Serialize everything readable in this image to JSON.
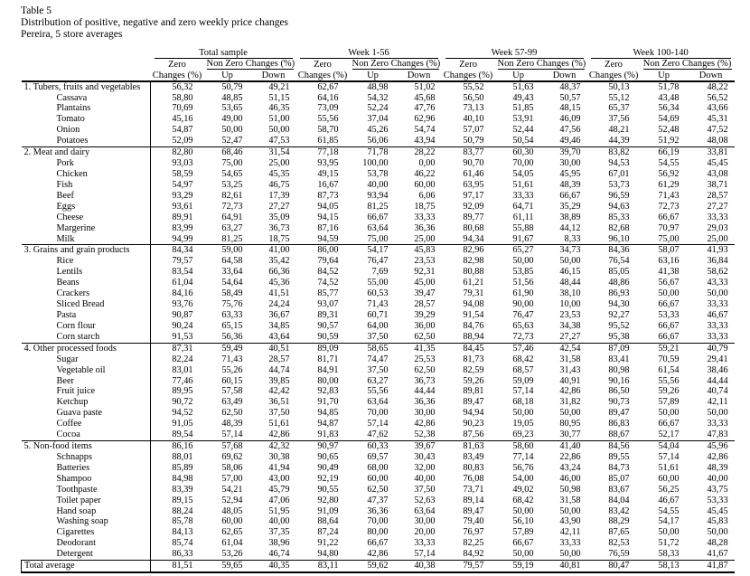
{
  "page": {
    "table_label": "Table 5",
    "title": "Distribution of positive, negative and zero weekly price changes",
    "subtitle": "Pereira, 5 store averages"
  },
  "table": {
    "column_groups": [
      "Total sample",
      "Week 1-56",
      "Week 57-99",
      "Week 100-140"
    ],
    "sub_headers": {
      "zero_top": "Zero",
      "zero_bottom": "Changes (%)",
      "non_zero": "Non Zero Changes (%)",
      "up": "Up",
      "down": "Down"
    },
    "rows": [
      {
        "label": "1. Tubers, fruits and vegetables",
        "type": "section",
        "values": [
          "56,32",
          "50,79",
          "49,21",
          "62,67",
          "48,98",
          "51,02",
          "55,52",
          "51,63",
          "48,37",
          "50,13",
          "51,78",
          "48,22"
        ]
      },
      {
        "label": "Cassava",
        "type": "item",
        "values": [
          "58,80",
          "48,85",
          "51,15",
          "64,16",
          "54,32",
          "45,68",
          "56,50",
          "49,43",
          "50,57",
          "55,12",
          "43,48",
          "56,52"
        ]
      },
      {
        "label": "Plantains",
        "type": "item",
        "values": [
          "70,69",
          "53,65",
          "46,35",
          "73,09",
          "52,24",
          "47,76",
          "73,13",
          "51,85",
          "48,15",
          "65,37",
          "56,34",
          "43,66"
        ]
      },
      {
        "label": "Tomato",
        "type": "item",
        "values": [
          "45,16",
          "49,00",
          "51,00",
          "55,56",
          "37,04",
          "62,96",
          "40,10",
          "53,91",
          "46,09",
          "37,56",
          "54,69",
          "45,31"
        ]
      },
      {
        "label": "Onion",
        "type": "item",
        "values": [
          "54,87",
          "50,00",
          "50,00",
          "58,70",
          "45,26",
          "54,74",
          "57,07",
          "52,44",
          "47,56",
          "48,21",
          "52,48",
          "47,52"
        ]
      },
      {
        "label": "Potatoes",
        "type": "item",
        "values": [
          "52,09",
          "52,47",
          "47,53",
          "61,85",
          "56,06",
          "43,94",
          "50,79",
          "50,54",
          "49,46",
          "44,39",
          "51,92",
          "48,08"
        ]
      },
      {
        "label": "2. Meat and dairy",
        "type": "section",
        "values": [
          "82,80",
          "68,46",
          "31,54",
          "77,18",
          "71,78",
          "28,22",
          "83,77",
          "60,30",
          "39,70",
          "83,82",
          "66,19",
          "33,81"
        ]
      },
      {
        "label": "Pork",
        "type": "item",
        "values": [
          "93,03",
          "75,00",
          "25,00",
          "93,95",
          "100,00",
          "0,00",
          "90,70",
          "70,00",
          "30,00",
          "94,53",
          "54,55",
          "45,45"
        ]
      },
      {
        "label": "Chicken",
        "type": "item",
        "values": [
          "58,59",
          "54,65",
          "45,35",
          "49,15",
          "53,78",
          "46,22",
          "61,46",
          "54,05",
          "45,95",
          "67,01",
          "56,92",
          "43,08"
        ]
      },
      {
        "label": "Fish",
        "type": "item",
        "values": [
          "54,97",
          "53,25",
          "46,75",
          "16,67",
          "40,00",
          "60,00",
          "63,95",
          "51,61",
          "48,39",
          "53,73",
          "61,29",
          "38,71"
        ]
      },
      {
        "label": "Beef",
        "type": "item",
        "values": [
          "93,29",
          "82,61",
          "17,39",
          "87,73",
          "93,94",
          "6,06",
          "97,17",
          "33,33",
          "66,67",
          "96,59",
          "71,43",
          "28,57"
        ]
      },
      {
        "label": "Eggs",
        "type": "item",
        "values": [
          "93,61",
          "72,73",
          "27,27",
          "94,05",
          "81,25",
          "18,75",
          "92,09",
          "64,71",
          "35,29",
          "94,63",
          "72,73",
          "27,27"
        ]
      },
      {
        "label": "Cheese",
        "type": "item",
        "values": [
          "89,91",
          "64,91",
          "35,09",
          "94,15",
          "66,67",
          "33,33",
          "89,77",
          "61,11",
          "38,89",
          "85,33",
          "66,67",
          "33,33"
        ]
      },
      {
        "label": "Margerine",
        "type": "item",
        "values": [
          "83,99",
          "63,27",
          "36,73",
          "87,16",
          "63,64",
          "36,36",
          "80,68",
          "55,88",
          "44,12",
          "82,68",
          "70,97",
          "29,03"
        ]
      },
      {
        "label": "Milk",
        "type": "item",
        "values": [
          "94,99",
          "81,25",
          "18,75",
          "94,59",
          "75,00",
          "25,00",
          "94,34",
          "91,67",
          "8,33",
          "96,10",
          "75,00",
          "25,00"
        ]
      },
      {
        "label": "3. Grains and grain products",
        "type": "section",
        "values": [
          "84,34",
          "59,00",
          "41,00",
          "86,00",
          "54,17",
          "45,83",
          "82,96",
          "65,27",
          "34,73",
          "84,36",
          "58,07",
          "41,93"
        ]
      },
      {
        "label": "Rice",
        "type": "item",
        "values": [
          "79,57",
          "64,58",
          "35,42",
          "79,64",
          "76,47",
          "23,53",
          "82,98",
          "50,00",
          "50,00",
          "76,54",
          "63,16",
          "36,84"
        ]
      },
      {
        "label": "Lentils",
        "type": "item",
        "values": [
          "83,54",
          "33,64",
          "66,36",
          "84,52",
          "7,69",
          "92,31",
          "80,88",
          "53,85",
          "46,15",
          "85,05",
          "41,38",
          "58,62"
        ]
      },
      {
        "label": "Beans",
        "type": "item",
        "values": [
          "61,04",
          "54,64",
          "45,36",
          "74,52",
          "55,00",
          "45,00",
          "61,21",
          "51,56",
          "48,44",
          "48,86",
          "56,67",
          "43,33"
        ]
      },
      {
        "label": "Crackers",
        "type": "item",
        "values": [
          "84,16",
          "58,49",
          "41,51",
          "85,77",
          "60,53",
          "39,47",
          "79,31",
          "61,90",
          "38,10",
          "86,93",
          "50,00",
          "50,00"
        ]
      },
      {
        "label": "Sliced Bread",
        "type": "item",
        "values": [
          "93,76",
          "75,76",
          "24,24",
          "93,07",
          "71,43",
          "28,57",
          "94,08",
          "90,00",
          "10,00",
          "94,30",
          "66,67",
          "33,33"
        ]
      },
      {
        "label": "Pasta",
        "type": "item",
        "values": [
          "90,87",
          "63,33",
          "36,67",
          "89,31",
          "60,71",
          "39,29",
          "91,54",
          "76,47",
          "23,53",
          "92,27",
          "53,33",
          "46,67"
        ]
      },
      {
        "label": "Corn flour",
        "type": "item",
        "values": [
          "90,24",
          "65,15",
          "34,85",
          "90,57",
          "64,00",
          "36,00",
          "84,76",
          "65,63",
          "34,38",
          "95,52",
          "66,67",
          "33,33"
        ]
      },
      {
        "label": "Corn starch",
        "type": "item",
        "values": [
          "91,53",
          "56,36",
          "43,64",
          "90,59",
          "37,50",
          "62,50",
          "88,94",
          "72,73",
          "27,27",
          "95,38",
          "66,67",
          "33,33"
        ]
      },
      {
        "label": "4. Other processed foods",
        "type": "section",
        "values": [
          "87,31",
          "59,49",
          "40,51",
          "89,09",
          "58,65",
          "41,35",
          "84,45",
          "57,46",
          "42,54",
          "87,09",
          "59,21",
          "40,79"
        ]
      },
      {
        "label": "Sugar",
        "type": "item",
        "values": [
          "82,24",
          "71,43",
          "28,57",
          "81,71",
          "74,47",
          "25,53",
          "81,73",
          "68,42",
          "31,58",
          "83,41",
          "70,59",
          "29,41"
        ]
      },
      {
        "label": "Vegetable oil",
        "type": "item",
        "values": [
          "83,01",
          "55,26",
          "44,74",
          "84,91",
          "37,50",
          "62,50",
          "82,59",
          "68,57",
          "31,43",
          "80,98",
          "61,54",
          "38,46"
        ]
      },
      {
        "label": "Beer",
        "type": "item",
        "values": [
          "77,46",
          "60,15",
          "39,85",
          "80,00",
          "63,27",
          "36,73",
          "59,26",
          "59,09",
          "40,91",
          "90,16",
          "55,56",
          "44,44"
        ]
      },
      {
        "label": "Fruit juice",
        "type": "item",
        "values": [
          "89,95",
          "57,58",
          "42,42",
          "92,83",
          "55,56",
          "44,44",
          "89,81",
          "57,14",
          "42,86",
          "86,50",
          "59,26",
          "40,74"
        ]
      },
      {
        "label": "Ketchup",
        "type": "item",
        "values": [
          "90,72",
          "63,49",
          "36,51",
          "91,70",
          "63,64",
          "36,36",
          "89,47",
          "68,18",
          "31,82",
          "90,73",
          "57,89",
          "42,11"
        ]
      },
      {
        "label": "Guava paste",
        "type": "item",
        "values": [
          "94,52",
          "62,50",
          "37,50",
          "94,85",
          "70,00",
          "30,00",
          "94,94",
          "50,00",
          "50,00",
          "89,47",
          "50,00",
          "50,00"
        ]
      },
      {
        "label": "Coffee",
        "type": "item",
        "values": [
          "91,05",
          "48,39",
          "51,61",
          "94,87",
          "57,14",
          "42,86",
          "90,23",
          "19,05",
          "80,95",
          "86,83",
          "66,67",
          "33,33"
        ]
      },
      {
        "label": "Cocoa",
        "type": "item",
        "values": [
          "89,54",
          "57,14",
          "42,86",
          "91,83",
          "47,62",
          "52,38",
          "87,56",
          "69,23",
          "30,77",
          "88,67",
          "52,17",
          "47,83"
        ]
      },
      {
        "label": "5. Non-food items",
        "type": "section",
        "values": [
          "86,16",
          "57,68",
          "42,32",
          "90,97",
          "60,33",
          "39,67",
          "81,63",
          "58,60",
          "41,40",
          "84,56",
          "54,04",
          "45,96"
        ]
      },
      {
        "label": "Schnapps",
        "type": "item",
        "values": [
          "88,01",
          "69,62",
          "30,38",
          "90,65",
          "69,57",
          "30,43",
          "83,49",
          "77,14",
          "22,86",
          "89,55",
          "57,14",
          "42,86"
        ]
      },
      {
        "label": "Batteries",
        "type": "item",
        "values": [
          "85,89",
          "58,06",
          "41,94",
          "90,49",
          "68,00",
          "32,00",
          "80,83",
          "56,76",
          "43,24",
          "84,73",
          "51,61",
          "48,39"
        ]
      },
      {
        "label": "Shampoo",
        "type": "item",
        "values": [
          "84,98",
          "57,00",
          "43,00",
          "92,19",
          "60,00",
          "40,00",
          "76,08",
          "54,00",
          "46,00",
          "85,07",
          "60,00",
          "40,00"
        ]
      },
      {
        "label": "Toothpaste",
        "type": "item",
        "values": [
          "83,39",
          "54,21",
          "45,79",
          "90,55",
          "62,50",
          "37,50",
          "73,71",
          "49,02",
          "50,98",
          "83,67",
          "56,25",
          "43,75"
        ]
      },
      {
        "label": "Toilet paper",
        "type": "item",
        "values": [
          "89,15",
          "52,94",
          "47,06",
          "92,80",
          "47,37",
          "52,63",
          "89,14",
          "68,42",
          "31,58",
          "84,04",
          "46,67",
          "53,33"
        ]
      },
      {
        "label": "Hand soap",
        "type": "item",
        "values": [
          "88,24",
          "48,05",
          "51,95",
          "91,09",
          "36,36",
          "63,64",
          "89,47",
          "50,00",
          "50,00",
          "83,42",
          "54,55",
          "45,45"
        ]
      },
      {
        "label": "Washing soap",
        "type": "item",
        "values": [
          "85,78",
          "60,00",
          "40,00",
          "88,64",
          "70,00",
          "30,00",
          "79,40",
          "56,10",
          "43,90",
          "88,29",
          "54,17",
          "45,83"
        ]
      },
      {
        "label": "Cigarettes",
        "type": "item",
        "values": [
          "84,13",
          "62,65",
          "37,35",
          "87,24",
          "80,00",
          "20,00",
          "76,97",
          "57,89",
          "42,11",
          "87,65",
          "50,00",
          "50,00"
        ]
      },
      {
        "label": "Deodorant",
        "type": "item",
        "values": [
          "85,74",
          "61,04",
          "38,96",
          "91,22",
          "66,67",
          "33,33",
          "82,25",
          "66,67",
          "33,33",
          "82,53",
          "51,72",
          "48,28"
        ]
      },
      {
        "label": "Detergent",
        "type": "item",
        "values": [
          "86,33",
          "53,26",
          "46,74",
          "94,80",
          "42,86",
          "57,14",
          "84,92",
          "50,00",
          "50,00",
          "76,59",
          "58,33",
          "41,67"
        ]
      },
      {
        "label": "Total average",
        "type": "total",
        "values": [
          "81,51",
          "59,65",
          "40,35",
          "83,11",
          "59,62",
          "40,38",
          "79,57",
          "59,19",
          "40,81",
          "80,47",
          "58,13",
          "41,87"
        ]
      }
    ]
  }
}
